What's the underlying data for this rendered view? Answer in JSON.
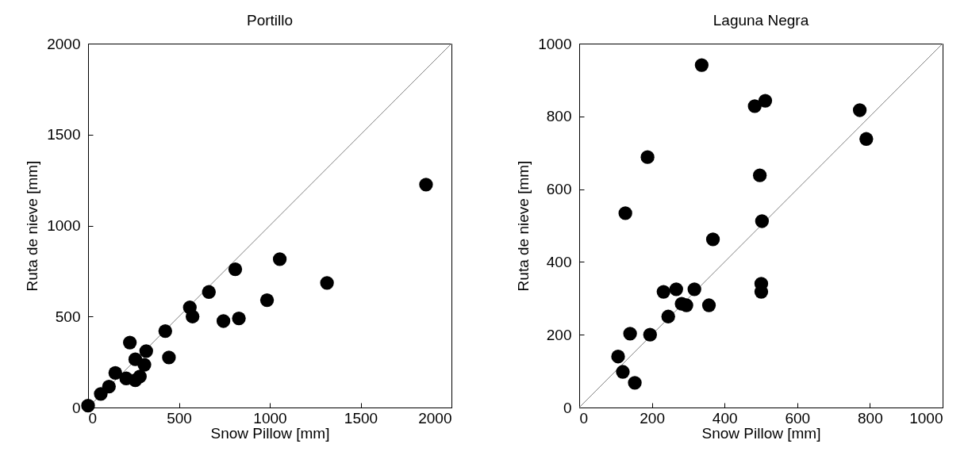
{
  "chart_data": [
    {
      "type": "scatter",
      "title": "Portillo",
      "xlabel": "Snow Pillow [mm]",
      "ylabel": "Ruta de nieve [mm]",
      "xlim": [
        0,
        2000
      ],
      "ylim": [
        0,
        2000
      ],
      "xticks": [
        0,
        500,
        1000,
        1500,
        2000
      ],
      "yticks": [
        0,
        500,
        1000,
        1500,
        2000
      ],
      "grid": false,
      "series": [
        {
          "marker": "circle",
          "color": "#000000",
          "x": [
            0,
            70,
            115,
            150,
            210,
            260,
            285,
            230,
            260,
            310,
            320,
            445,
            425,
            560,
            575,
            665,
            745,
            830,
            985,
            810,
            1055,
            1315,
            1860
          ],
          "values": [
            10,
            75,
            115,
            190,
            160,
            150,
            170,
            357,
            265,
            235,
            310,
            275,
            420,
            550,
            500,
            635,
            475,
            490,
            590,
            760,
            815,
            685,
            1225
          ]
        },
        {
          "type": "line",
          "color": "#808080",
          "x": [
            0,
            2000
          ],
          "values": [
            0,
            2000
          ]
        }
      ]
    },
    {
      "type": "scatter",
      "title": "Laguna Negra",
      "xlabel": "Snow Pillow [mm]",
      "ylabel": "Ruta de nieve [mm]",
      "xlim": [
        0,
        1000
      ],
      "ylim": [
        0,
        1000
      ],
      "xticks": [
        0,
        200,
        400,
        600,
        800,
        1000
      ],
      "yticks": [
        0,
        200,
        400,
        600,
        800,
        1000
      ],
      "grid": false,
      "series": [
        {
          "marker": "circle",
          "color": "#000000",
          "x": [
            107,
            120,
            153,
            140,
            195,
            245,
            232,
            267,
            317,
            282,
            295,
            357,
            501,
            501,
            368,
            337,
            483,
            512,
            772,
            790,
            188,
            497,
            127,
            503
          ],
          "values": [
            140,
            98,
            68,
            203,
            200,
            250,
            318,
            325,
            325,
            285,
            281,
            281,
            340,
            318,
            462,
            941,
            828,
            843,
            817,
            738,
            688,
            638,
            534,
            512
          ]
        },
        {
          "type": "line",
          "color": "#808080",
          "x": [
            0,
            1000
          ],
          "values": [
            0,
            1000
          ]
        }
      ]
    }
  ]
}
